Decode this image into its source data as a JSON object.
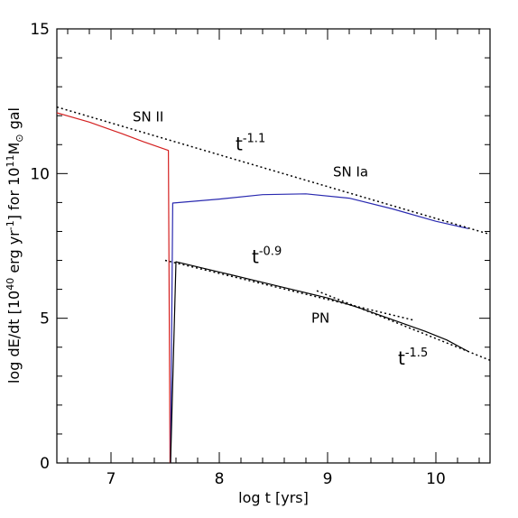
{
  "chart_data": {
    "type": "line",
    "xlabel": "log t [yrs]",
    "ylabel_parts": [
      "log dE/dt [10",
      "40",
      " erg yr",
      "-1",
      "] for 10",
      "11",
      "M",
      "⊙",
      " gal"
    ],
    "xlim": [
      6.5,
      10.5
    ],
    "ylim": [
      0,
      15
    ],
    "xticks": [
      7,
      8,
      9,
      10
    ],
    "yticks": [
      0,
      5,
      10,
      15
    ],
    "series": [
      {
        "name": "SN II",
        "color": "#d42020",
        "style": "solid",
        "x": [
          6.5,
          6.8,
          7.1,
          7.3,
          7.53,
          7.53,
          7.545,
          7.545
        ],
        "y": [
          12.1,
          11.78,
          11.38,
          11.1,
          10.8,
          10.8,
          0.0,
          0.0
        ]
      },
      {
        "name": "SN Ia",
        "color": "#2a2ab0",
        "style": "solid",
        "x": [
          7.55,
          7.57,
          8.0,
          8.4,
          8.8,
          9.2,
          9.6,
          10.0,
          10.3
        ],
        "y": [
          0.0,
          8.98,
          9.12,
          9.27,
          9.3,
          9.15,
          8.78,
          8.35,
          8.1
        ]
      },
      {
        "name": "PN",
        "color": "#000000",
        "style": "solid",
        "x": [
          7.55,
          7.6,
          8.0,
          8.5,
          9.0,
          9.3,
          9.6,
          9.9,
          10.1,
          10.2,
          10.3
        ],
        "y": [
          0.0,
          6.95,
          6.6,
          6.15,
          5.7,
          5.35,
          4.95,
          4.55,
          4.25,
          4.05,
          3.85
        ]
      },
      {
        "name": "",
        "color": "#000000",
        "style": "dotted",
        "x": [
          6.5,
          10.5
        ],
        "y": [
          12.3,
          7.9
        ]
      },
      {
        "name": "",
        "color": "#000000",
        "style": "dotted",
        "x": [
          7.5,
          9.8
        ],
        "y": [
          7.0,
          4.93
        ]
      },
      {
        "name": "",
        "color": "#000000",
        "style": "dotted",
        "x": [
          8.9,
          10.5
        ],
        "y": [
          5.95,
          3.55
        ]
      }
    ],
    "annotations": [
      {
        "text": "SN II",
        "color": "#d42020",
        "x": 7.2,
        "y": 11.8
      },
      {
        "text": "SN Ia",
        "color": "#2a2ab0",
        "x": 9.05,
        "y": 9.9
      },
      {
        "text": "PN",
        "color": "#000000",
        "x": 8.85,
        "y": 4.85
      },
      {
        "base": "t",
        "exponent": "-1.1",
        "x": 8.15,
        "y": 10.8
      },
      {
        "base": "t",
        "exponent": "-0.9",
        "x": 8.3,
        "y": 6.9
      },
      {
        "base": "t",
        "exponent": "-1.5",
        "x": 9.65,
        "y": 3.4
      }
    ]
  }
}
